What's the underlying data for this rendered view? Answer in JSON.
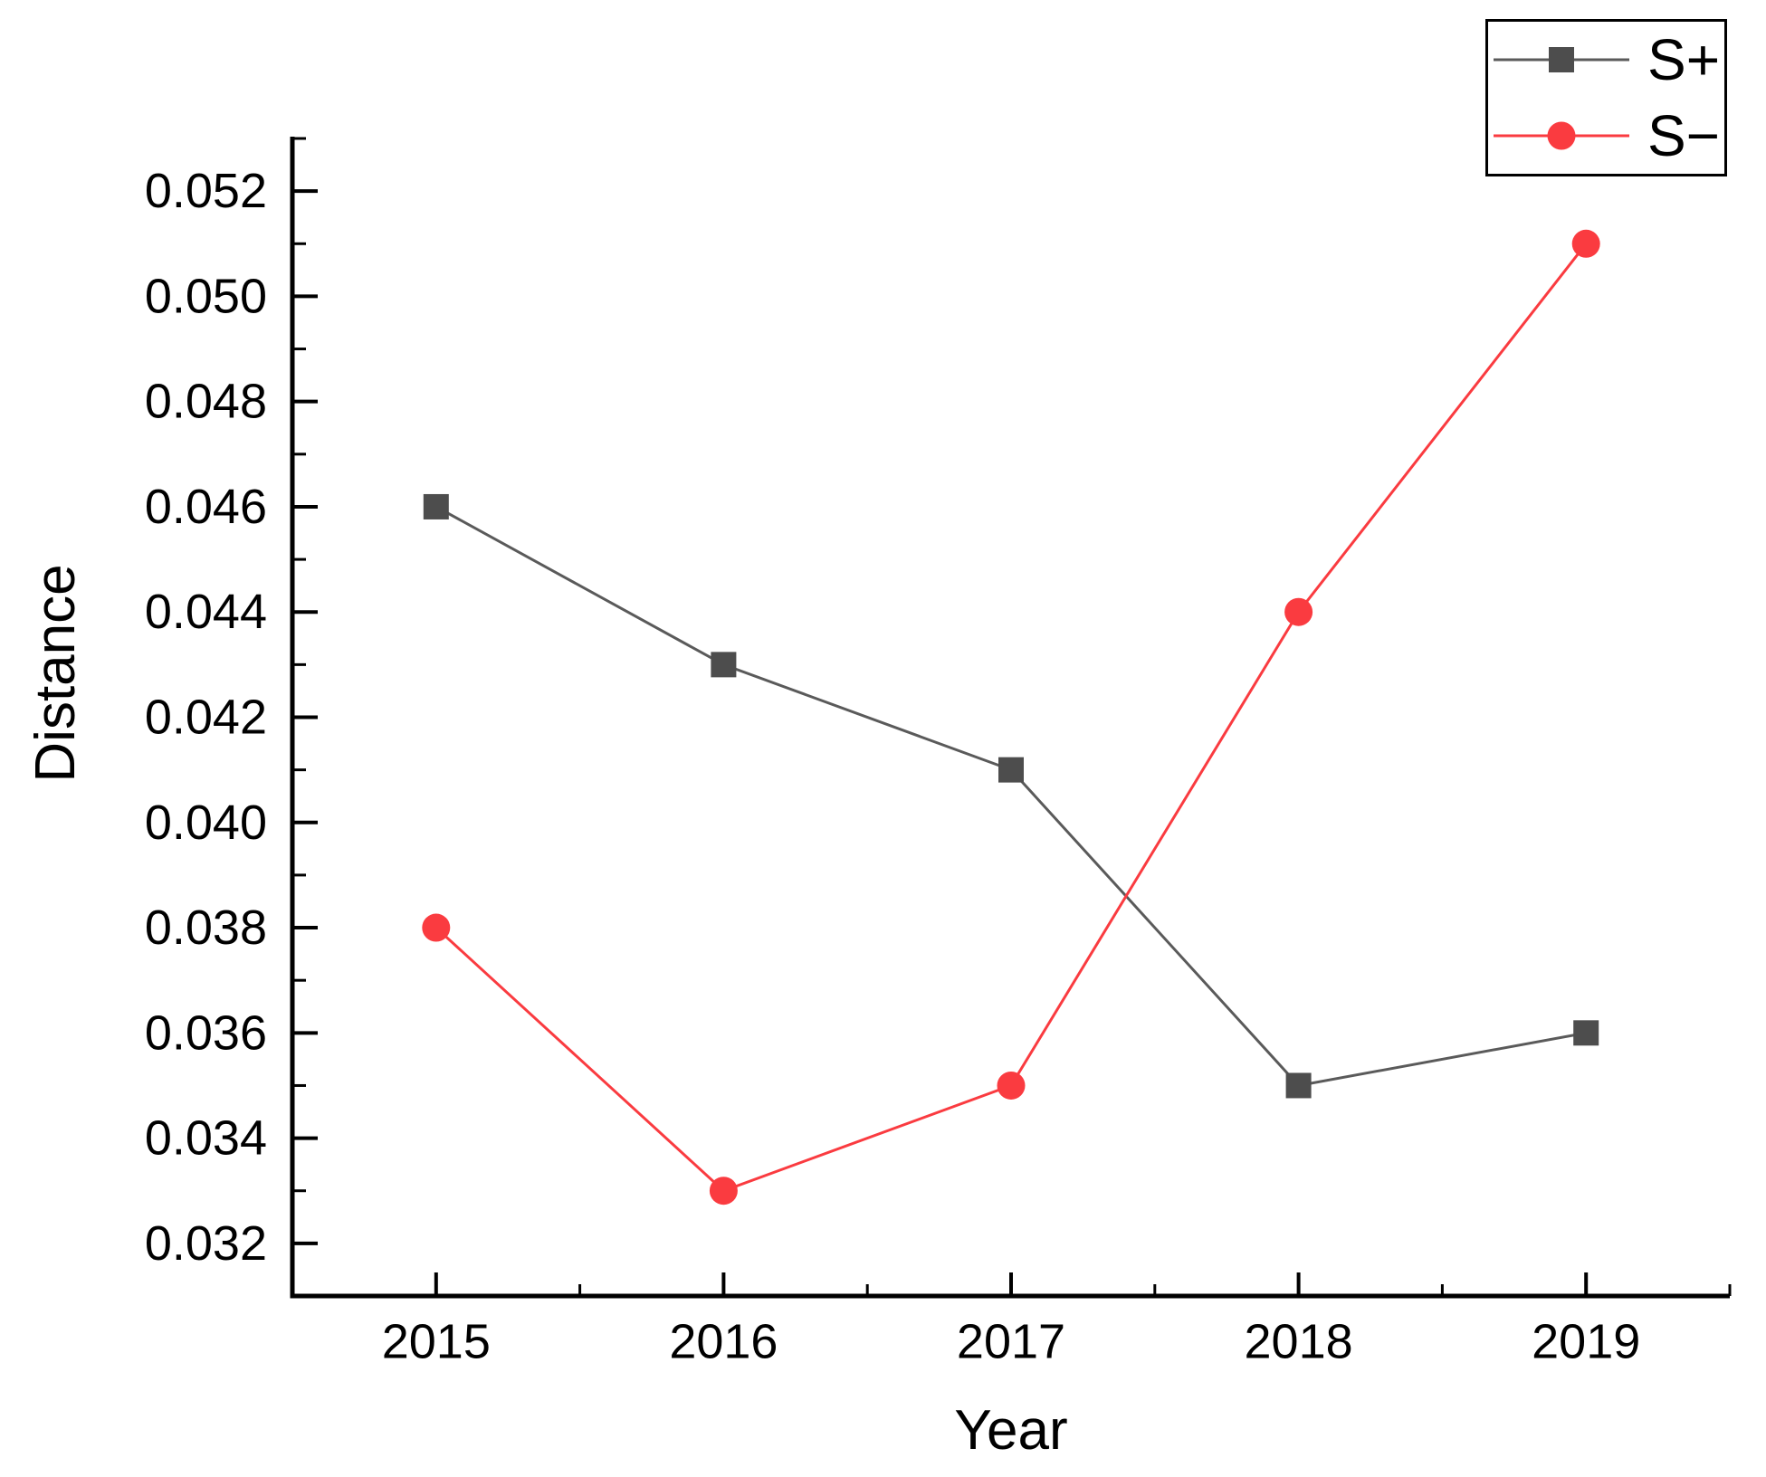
{
  "chart_data": {
    "type": "line",
    "xlabel": "Year",
    "ylabel": "Distance",
    "x": [
      2015,
      2016,
      2017,
      2018,
      2019
    ],
    "x_tick_labels": [
      "2015",
      "2016",
      "2017",
      "2018",
      "2019"
    ],
    "series": [
      {
        "name": "S+",
        "values": [
          0.046,
          0.043,
          0.041,
          0.035,
          0.036
        ],
        "marker": "square",
        "marker_color": "#4d4d4d",
        "line_color": "#5a5a5a"
      },
      {
        "name": "S−",
        "values": [
          0.038,
          0.033,
          0.035,
          0.044,
          0.051
        ],
        "marker": "circle",
        "marker_color": "#fa3b40",
        "line_color": "#fa3b40"
      }
    ],
    "xlim": [
      2014.5,
      2019.5
    ],
    "ylim": [
      0.031,
      0.053
    ],
    "y_tick_min": 0.032,
    "y_tick_max": 0.052,
    "y_major_tick_step": 0.002,
    "y_minor_tick_step": 0.001,
    "x_minor_tick_step": 0.5,
    "y_tick_decimals": 3,
    "grid": false,
    "legend_position": "top-right",
    "axis_color": "#000000",
    "text_color": "#000000"
  }
}
